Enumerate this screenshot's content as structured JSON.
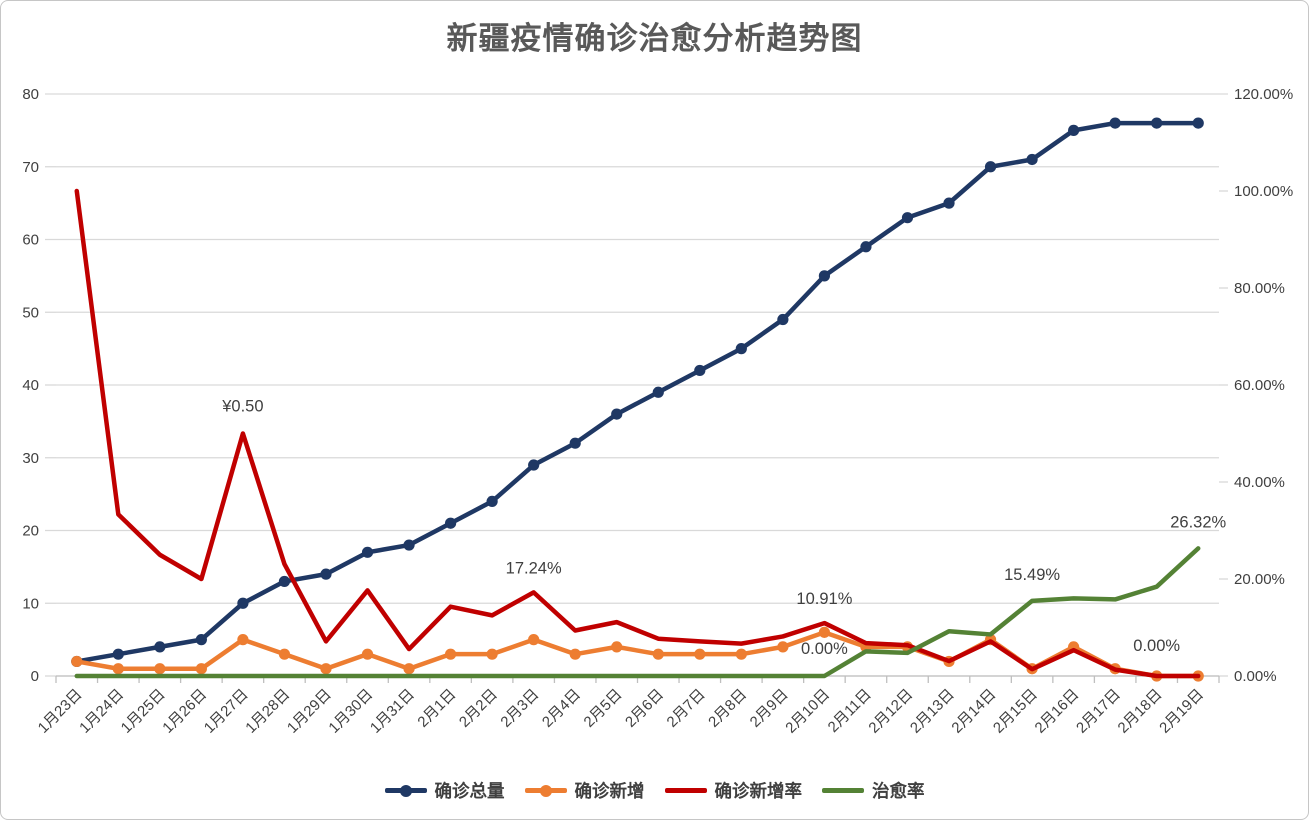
{
  "title": "新疆疫情确诊治愈分析趋势图",
  "colors": {
    "grid": "#D9D9D9",
    "axis_line": "#BFBFBF",
    "axis_text": "#404040",
    "title_text": "#595959"
  },
  "chart_data": {
    "type": "line",
    "title": "新疆疫情确诊治愈分析趋势图",
    "grid": true,
    "legend_position": "bottom",
    "categories": [
      "1月23日",
      "1月24日",
      "1月25日",
      "1月26日",
      "1月27日",
      "1月28日",
      "1月29日",
      "1月30日",
      "1月31日",
      "2月1日",
      "2月2日",
      "2月3日",
      "2月4日",
      "2月5日",
      "2月6日",
      "2月7日",
      "2月8日",
      "2月9日",
      "2月10日",
      "2月11日",
      "2月12日",
      "2月13日",
      "2月14日",
      "2月15日",
      "2月16日",
      "2月17日",
      "2月18日",
      "2月19日"
    ],
    "series": [
      {
        "key": "total-confirmed",
        "name": "确诊总量",
        "axis": "left",
        "color": "#1F3864",
        "marker": true,
        "values": [
          2,
          3,
          4,
          5,
          10,
          13,
          14,
          17,
          18,
          21,
          24,
          29,
          32,
          36,
          39,
          42,
          45,
          49,
          55,
          59,
          63,
          65,
          70,
          71,
          75,
          76,
          76,
          76
        ]
      },
      {
        "key": "new-confirmed",
        "name": "确诊新增",
        "axis": "left",
        "color": "#ED7D31",
        "marker": true,
        "values": [
          2,
          1,
          1,
          1,
          5,
          3,
          1,
          3,
          1,
          3,
          3,
          5,
          3,
          4,
          3,
          3,
          3,
          4,
          6,
          4,
          4,
          2,
          5,
          1,
          4,
          1,
          0,
          0
        ]
      },
      {
        "key": "new-confirmed-rate",
        "name": "确诊新增率",
        "axis": "right",
        "color": "#C00000",
        "marker": false,
        "values": [
          100,
          33.33,
          25,
          20,
          50,
          23.08,
          7.14,
          17.65,
          5.56,
          14.29,
          12.5,
          17.24,
          9.38,
          11.11,
          7.69,
          7.14,
          6.67,
          8.16,
          10.91,
          6.78,
          6.35,
          3.08,
          7.14,
          1.41,
          5.33,
          1.32,
          0,
          0
        ]
      },
      {
        "key": "cure-rate",
        "name": "治愈率",
        "axis": "right",
        "color": "#548235",
        "marker": false,
        "values": [
          0,
          0,
          0,
          0,
          0,
          0,
          0,
          0,
          0,
          0,
          0,
          0,
          0,
          0,
          0,
          0,
          0,
          0,
          0,
          5.08,
          4.76,
          9.23,
          8.57,
          15.49,
          16.0,
          15.79,
          18.42,
          26.32
        ]
      }
    ],
    "left_axis": {
      "min": 0,
      "max": 80,
      "ticks": [
        0,
        10,
        20,
        30,
        40,
        50,
        60,
        70,
        80
      ]
    },
    "right_axis": {
      "min": 0,
      "max": 120,
      "ticks": [
        0,
        20,
        40,
        60,
        80,
        100,
        120
      ],
      "labels": [
        "0.00%",
        "20.00%",
        "40.00%",
        "60.00%",
        "80.00%",
        "100.00%",
        "120.00%"
      ]
    },
    "annotations": [
      {
        "text": "¥0.50",
        "series": "new-confirmed-rate",
        "category": "1月27日",
        "dy": 22
      },
      {
        "text": "17.24%",
        "series": "new-confirmed-rate",
        "category": "2月3日",
        "dy": 19
      },
      {
        "text": "10.91%",
        "series": "new-confirmed-rate",
        "category": "2月10日",
        "dy": 19
      },
      {
        "text": "0.00%",
        "series": "cure-rate",
        "category": "2月10日",
        "dy": 22
      },
      {
        "text": "15.49%",
        "series": "cure-rate",
        "category": "2月15日",
        "dy": 21
      },
      {
        "text": "0.00%",
        "series": "new-confirmed-rate",
        "category": "2月18日",
        "dy": 25
      },
      {
        "text": "26.32%",
        "series": "cure-rate",
        "category": "2月19日",
        "dy": 21
      }
    ]
  }
}
